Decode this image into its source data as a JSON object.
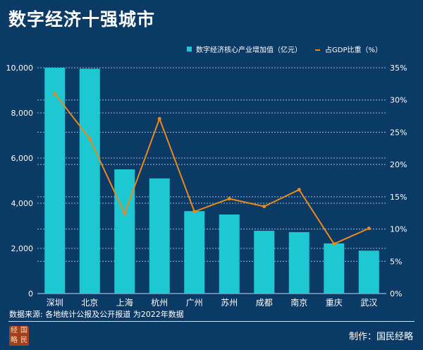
{
  "title": "数字经济十强城市",
  "source": "数据来源: 各地统计公报及公开报道  为2022年数据",
  "credit": "制作：国民经略",
  "logo_text": [
    "经",
    "国",
    "略",
    "民"
  ],
  "colors": {
    "bar": "#1ec8d2",
    "line": "#e88a1a",
    "background": "#0b3a66"
  },
  "chart_data": {
    "type": "bar+line",
    "categories": [
      "深圳",
      "北京",
      "上海",
      "杭州",
      "广州",
      "苏州",
      "成都",
      "南京",
      "重庆",
      "武汉"
    ],
    "series": [
      {
        "name": "数字经济核心产业增加值（亿元）",
        "type": "bar",
        "axis": "left",
        "values": [
          10000,
          9958,
          5500,
          5100,
          3650,
          3500,
          2780,
          2720,
          2220,
          1900
        ]
      },
      {
        "name": "占GDP比重（%）",
        "type": "line",
        "axis": "right",
        "values": [
          31,
          24,
          12.4,
          27.1,
          12.7,
          14.7,
          13.5,
          16.1,
          7.7,
          10.1
        ]
      }
    ],
    "left_axis": {
      "range": [
        0,
        10000
      ],
      "ticks": [
        "0",
        "2,000",
        "4,000",
        "6,000",
        "8,000",
        "10,000"
      ],
      "tick_values": [
        0,
        2000,
        4000,
        6000,
        8000,
        10000
      ]
    },
    "right_axis": {
      "range": [
        0,
        35
      ],
      "ticks": [
        "0%",
        "5%",
        "10%",
        "15%",
        "20%",
        "25%",
        "30%",
        "35%"
      ],
      "tick_values": [
        0,
        5,
        10,
        15,
        20,
        25,
        30,
        35
      ]
    },
    "legend_position": "top-right",
    "grid": true
  }
}
